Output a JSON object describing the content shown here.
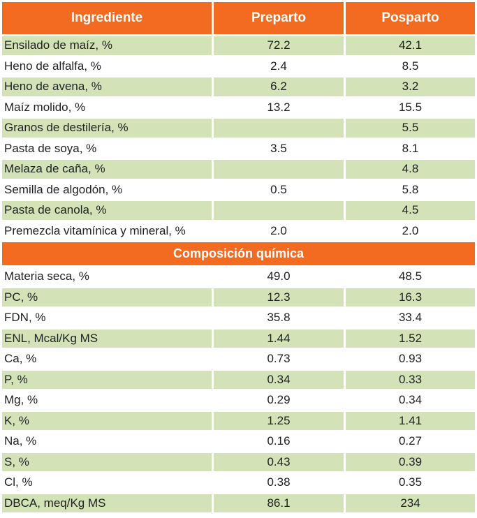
{
  "header": {
    "col_ingredient": "Ingrediente",
    "col_prepartum": "Preparto",
    "col_postpartum": "Posparto"
  },
  "ingredients": [
    {
      "name": "Ensilado de maíz, %",
      "pre": "72.2",
      "post": "42.1"
    },
    {
      "name": "Heno de alfalfa, %",
      "pre": "2.4",
      "post": "8.5"
    },
    {
      "name": "Heno de avena, %",
      "pre": "6.2",
      "post": "3.2"
    },
    {
      "name": "Maíz molido, %",
      "pre": "13.2",
      "post": "15.5"
    },
    {
      "name": "Granos de destilería, %",
      "pre": "",
      "post": "5.5"
    },
    {
      "name": "Pasta de soya, %",
      "pre": "3.5",
      "post": "8.1"
    },
    {
      "name": "Melaza de caña, %",
      "pre": "",
      "post": "4.8"
    },
    {
      "name": "Semilla de algodón, %",
      "pre": "0.5",
      "post": "5.8"
    },
    {
      "name": "Pasta de canola, %",
      "pre": "",
      "post": "4.5"
    },
    {
      "name": "Premezcla vitamínica y mineral, %",
      "pre": "2.0",
      "post": "2.0"
    }
  ],
  "section_title": "Composición química",
  "composition": [
    {
      "name": "Materia seca, %",
      "pre": "49.0",
      "post": "48.5"
    },
    {
      "name": "PC, %",
      "pre": "12.3",
      "post": "16.3"
    },
    {
      "name": "FDN, %",
      "pre": "35.8",
      "post": "33.4"
    },
    {
      "name": "ENL, Mcal/Kg MS",
      "pre": "1.44",
      "post": "1.52"
    },
    {
      "name": "Ca, %",
      "pre": "0.73",
      "post": "0.93"
    },
    {
      "name": "P, %",
      "pre": "0.34",
      "post": "0.33"
    },
    {
      "name": "Mg, %",
      "pre": "0.29",
      "post": "0.34"
    },
    {
      "name": "K, %",
      "pre": "1.25",
      "post": "1.41"
    },
    {
      "name": "Na, %",
      "pre": "0.16",
      "post": "0.27"
    },
    {
      "name": "S, %",
      "pre": "0.43",
      "post": "0.39"
    },
    {
      "name": "Cl, %",
      "pre": "0.38",
      "post": "0.35"
    },
    {
      "name": "DBCA, meq/Kg MS",
      "pre": "86.1",
      "post": "234"
    }
  ],
  "colors": {
    "header_bg": "#f26b21",
    "row_green": "#d3e3b7",
    "row_white": "#ffffff"
  }
}
